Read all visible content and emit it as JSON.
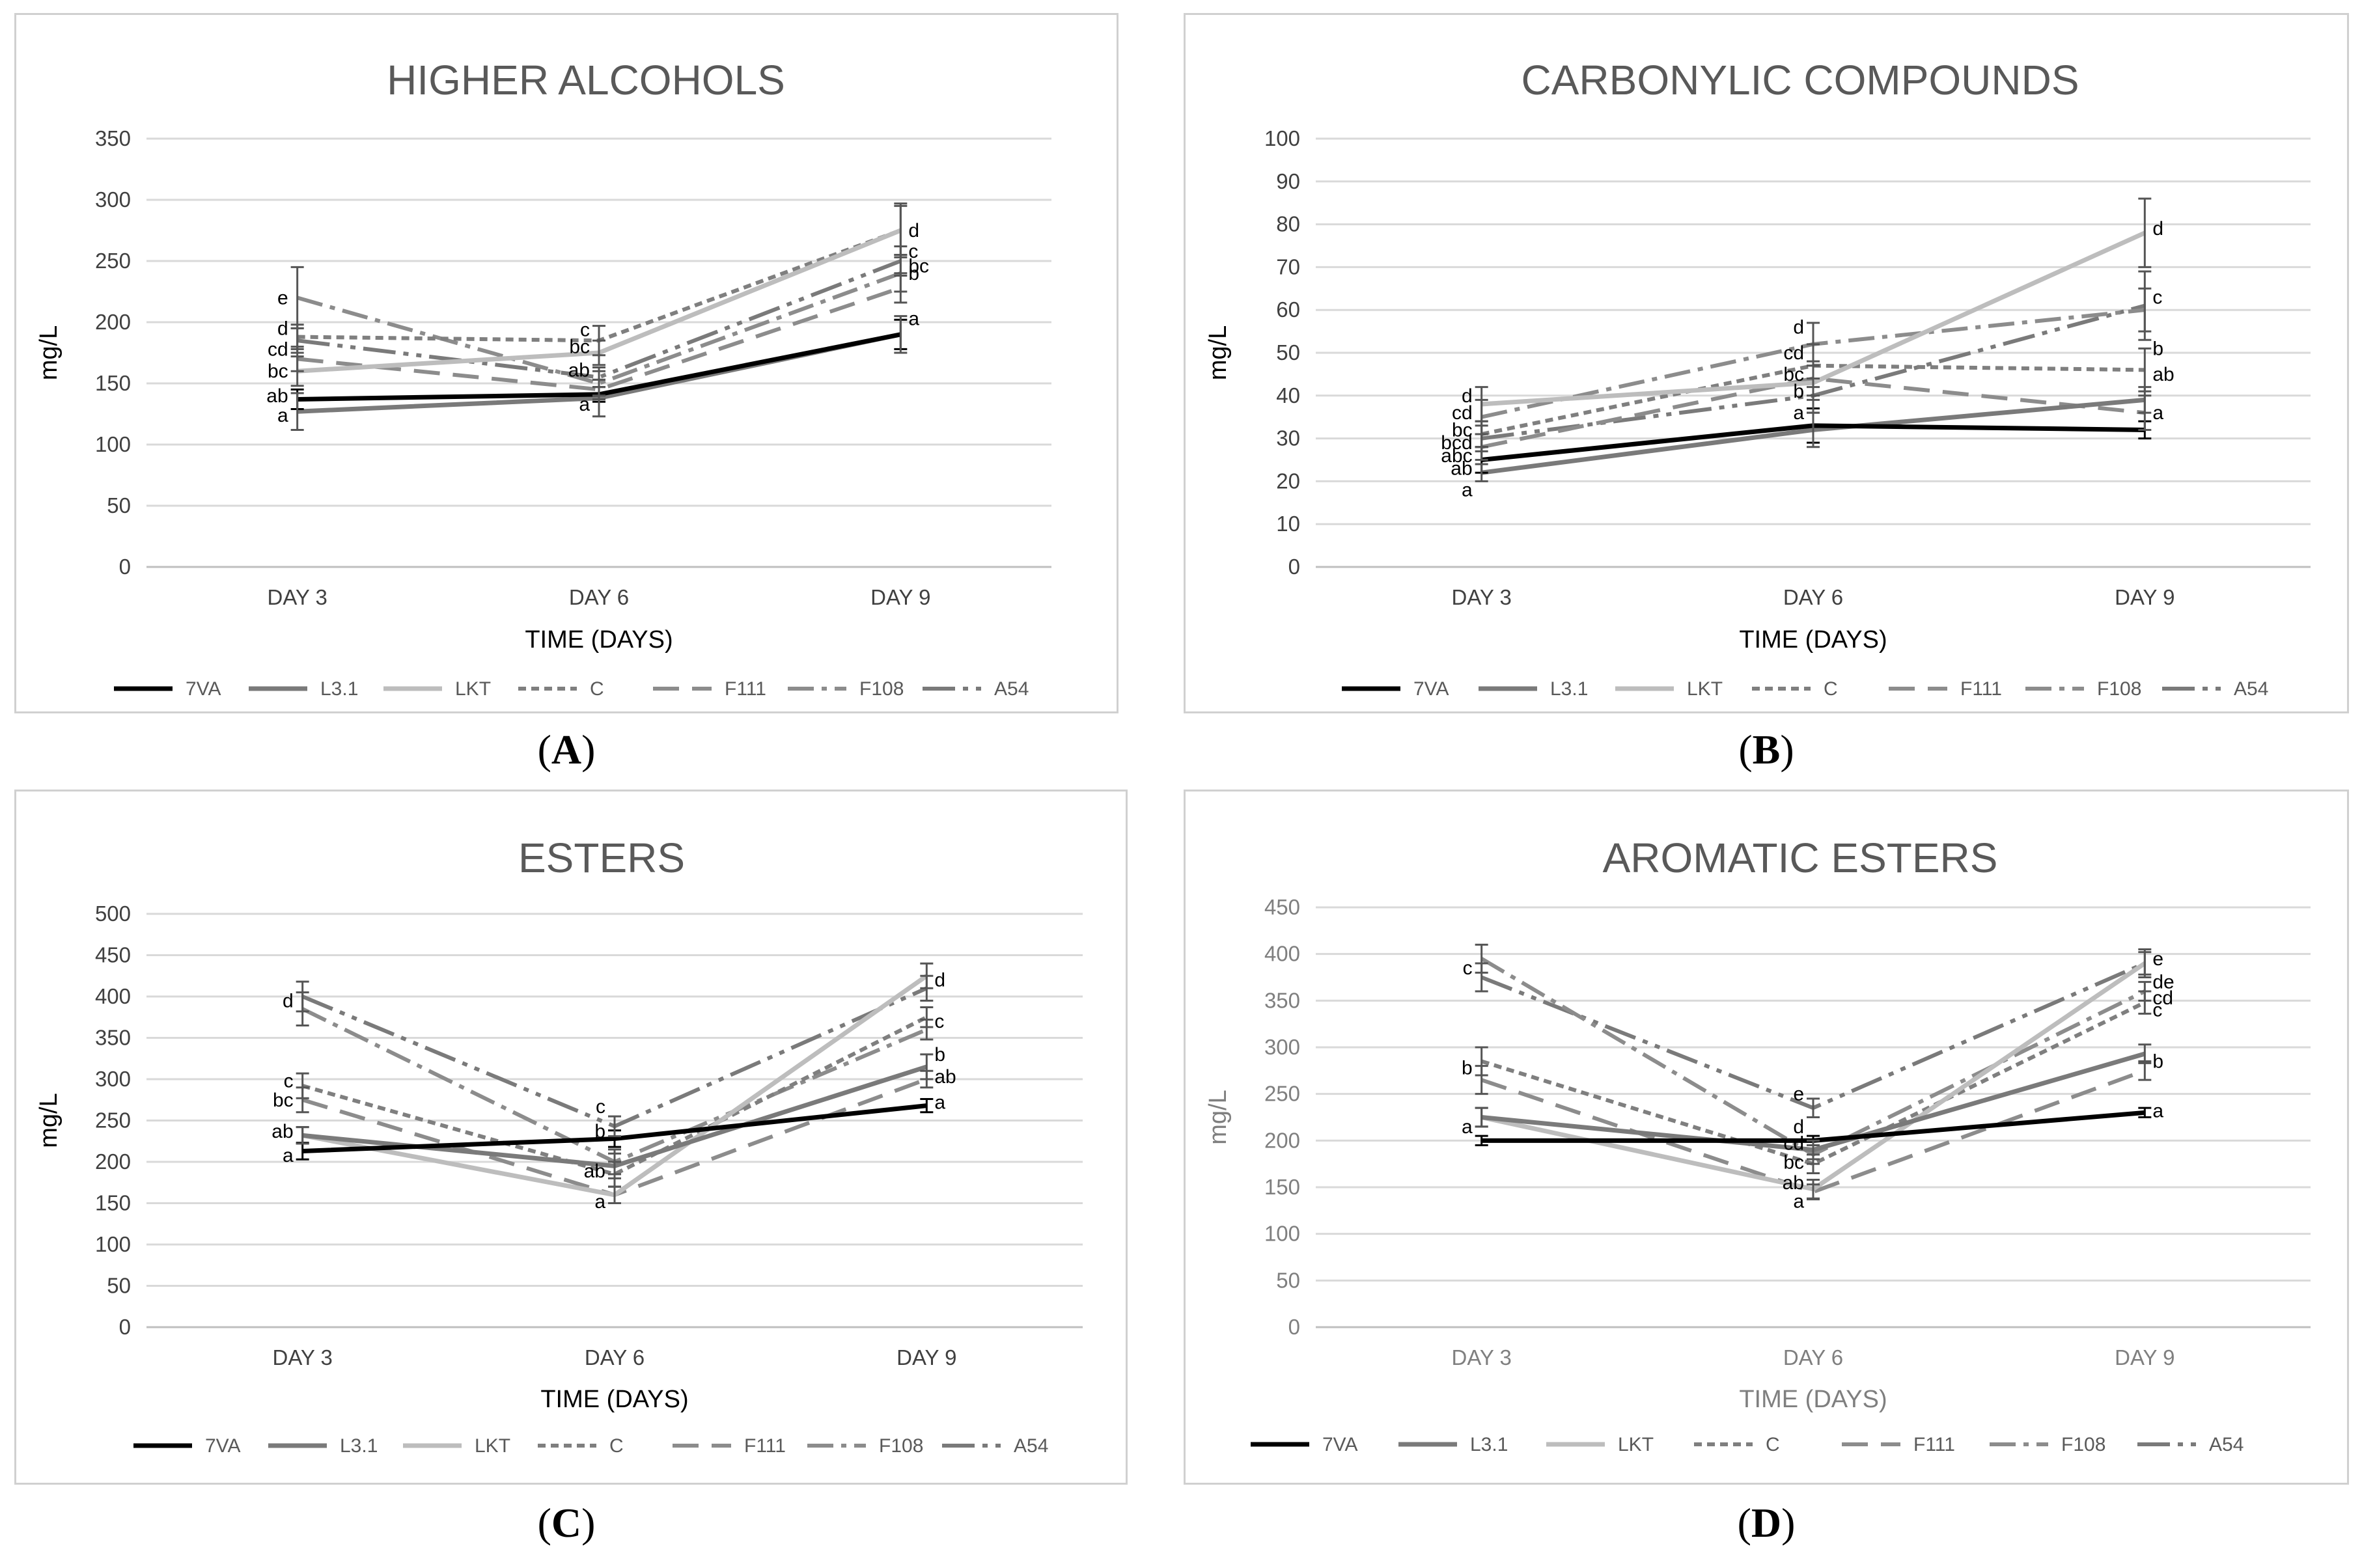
{
  "series_styles": [
    {
      "name": "7VA",
      "color": "#000000",
      "dash": "",
      "width": 7
    },
    {
      "name": "L3.1",
      "color": "#7a7a7a",
      "dash": "",
      "width": 7
    },
    {
      "name": "LKT",
      "color": "#bdbdbd",
      "dash": "",
      "width": 7
    },
    {
      "name": "C",
      "color": "#7f7f7f",
      "dash": "12,8",
      "width": 6
    },
    {
      "name": "F111",
      "color": "#8c8c8c",
      "dash": "40,20",
      "width": 6
    },
    {
      "name": "F108",
      "color": "#8c8c8c",
      "dash": "40,12,8,12",
      "width": 6
    },
    {
      "name": "A54",
      "color": "#7a7a7a",
      "dash": "50,12,8,12,8,12",
      "width": 6
    }
  ],
  "chart_data": [
    {
      "panel": "A",
      "type": "line",
      "title": "HIGHER ALCOHOLS",
      "xlabel": "TIME (DAYS)",
      "ylabel": "mg/L",
      "categories": [
        "DAY 3",
        "DAY 6",
        "DAY 9"
      ],
      "ylim": [
        0,
        350
      ],
      "yticks": [
        0,
        50,
        100,
        150,
        200,
        250,
        300,
        350
      ],
      "series": [
        {
          "name": "7VA",
          "values": [
            137,
            141,
            190
          ],
          "errors": [
            8,
            6,
            12
          ]
        },
        {
          "name": "L3.1",
          "values": [
            127,
            138,
            190
          ],
          "errors": [
            15,
            15,
            15
          ]
        },
        {
          "name": "LKT",
          "values": [
            160,
            175,
            275
          ],
          "errors": [
            12,
            10,
            20
          ]
        },
        {
          "name": "C",
          "values": [
            188,
            185,
            275
          ],
          "errors": [
            10,
            12,
            22
          ]
        },
        {
          "name": "F111",
          "values": [
            170,
            145,
            228
          ],
          "errors": [
            10,
            8,
            12
          ]
        },
        {
          "name": "F108",
          "values": [
            220,
            150,
            240
          ],
          "errors": [
            25,
            10,
            15
          ]
        },
        {
          "name": "A54",
          "values": [
            185,
            155,
            250
          ],
          "errors": [
            10,
            8,
            12
          ]
        }
      ],
      "letters": [
        {
          "category": "DAY 3",
          "labels": [
            {
              "text": "e",
              "value": 220
            },
            {
              "text": "d",
              "value": 195
            },
            {
              "text": "cd",
              "value": 178
            },
            {
              "text": "bc",
              "value": 160
            },
            {
              "text": "ab",
              "value": 140
            },
            {
              "text": "a",
              "value": 124
            }
          ]
        },
        {
          "category": "DAY 6",
          "labels": [
            {
              "text": "c",
              "value": 194
            },
            {
              "text": "bc",
              "value": 180
            },
            {
              "text": "ab",
              "value": 161
            },
            {
              "text": "a",
              "value": 133
            }
          ]
        },
        {
          "category": "DAY 9",
          "labels": [
            {
              "text": "d",
              "value": 275
            },
            {
              "text": "c",
              "value": 258
            },
            {
              "text": "bc",
              "value": 246
            },
            {
              "text": "b",
              "value": 240
            },
            {
              "text": "a",
              "value": 203
            }
          ]
        }
      ],
      "panel_label": "A"
    },
    {
      "panel": "B",
      "type": "line",
      "title": "CARBONYLIC COMPOUNDS",
      "xlabel": "TIME (DAYS)",
      "ylabel": "mg/L",
      "categories": [
        "DAY 3",
        "DAY 6",
        "DAY 9"
      ],
      "ylim": [
        0,
        100
      ],
      "yticks": [
        0,
        10,
        20,
        30,
        40,
        50,
        60,
        70,
        80,
        90,
        100
      ],
      "series": [
        {
          "name": "7VA",
          "values": [
            25,
            33,
            32
          ],
          "errors": [
            3,
            4,
            2
          ]
        },
        {
          "name": "L3.1",
          "values": [
            22,
            32,
            39
          ],
          "errors": [
            2,
            4,
            3
          ]
        },
        {
          "name": "LKT",
          "values": [
            38,
            43,
            78
          ],
          "errors": [
            4,
            4,
            8
          ]
        },
        {
          "name": "C",
          "values": [
            31,
            47,
            46
          ],
          "errors": [
            3,
            5,
            5
          ]
        },
        {
          "name": "F111",
          "values": [
            28,
            44,
            36
          ],
          "errors": [
            3,
            4,
            4
          ]
        },
        {
          "name": "F108",
          "values": [
            35,
            52,
            60
          ],
          "errors": [
            4,
            5,
            5
          ]
        },
        {
          "name": "A54",
          "values": [
            30,
            40,
            61
          ],
          "errors": [
            3,
            4,
            8
          ]
        }
      ],
      "letters": [
        {
          "category": "DAY 3",
          "labels": [
            {
              "text": "d",
              "value": 40
            },
            {
              "text": "cd",
              "value": 36
            },
            {
              "text": "bc",
              "value": 32
            },
            {
              "text": "bcd",
              "value": 29
            },
            {
              "text": "abc",
              "value": 26
            },
            {
              "text": "ab",
              "value": 23
            },
            {
              "text": "a",
              "value": 18
            }
          ]
        },
        {
          "category": "DAY 6",
          "labels": [
            {
              "text": "d",
              "value": 56
            },
            {
              "text": "cd",
              "value": 50
            },
            {
              "text": "bc",
              "value": 45
            },
            {
              "text": "b",
              "value": 41
            },
            {
              "text": "a",
              "value": 36
            }
          ]
        },
        {
          "category": "DAY 9",
          "labels": [
            {
              "text": "d",
              "value": 79
            },
            {
              "text": "c",
              "value": 63
            },
            {
              "text": "b",
              "value": 51
            },
            {
              "text": "ab",
              "value": 45
            },
            {
              "text": "a",
              "value": 36
            }
          ]
        }
      ],
      "panel_label": "B"
    },
    {
      "panel": "C",
      "type": "line",
      "title": "ESTERS",
      "xlabel": "TIME (DAYS)",
      "ylabel": "mg/L",
      "categories": [
        "DAY 3",
        "DAY 6",
        "DAY 9"
      ],
      "ylim": [
        0,
        500
      ],
      "yticks": [
        0,
        50,
        100,
        150,
        200,
        250,
        300,
        350,
        400,
        450,
        500
      ],
      "series": [
        {
          "name": "7VA",
          "values": [
            213,
            228,
            268
          ],
          "errors": [
            10,
            10,
            8
          ]
        },
        {
          "name": "L3.1",
          "values": [
            232,
            195,
            315
          ],
          "errors": [
            10,
            15,
            15
          ]
        },
        {
          "name": "LKT",
          "values": [
            232,
            160,
            425
          ],
          "errors": [
            10,
            10,
            15
          ]
        },
        {
          "name": "C",
          "values": [
            292,
            185,
            375
          ],
          "errors": [
            15,
            15,
            12
          ]
        },
        {
          "name": "F111",
          "values": [
            275,
            160,
            300
          ],
          "errors": [
            15,
            10,
            10
          ]
        },
        {
          "name": "F108",
          "values": [
            385,
            200,
            360
          ],
          "errors": [
            20,
            15,
            12
          ]
        },
        {
          "name": "A54",
          "values": [
            400,
            243,
            410
          ],
          "errors": [
            18,
            12,
            15
          ]
        }
      ],
      "letters": [
        {
          "category": "DAY 3",
          "labels": [
            {
              "text": "d",
              "value": 395
            },
            {
              "text": "c",
              "value": 298
            },
            {
              "text": "bc",
              "value": 275
            },
            {
              "text": "ab",
              "value": 237
            },
            {
              "text": "a",
              "value": 208
            }
          ]
        },
        {
          "category": "DAY 6",
          "labels": [
            {
              "text": "c",
              "value": 267
            },
            {
              "text": "b",
              "value": 237
            },
            {
              "text": "ab",
              "value": 189
            },
            {
              "text": "a",
              "value": 152
            }
          ]
        },
        {
          "category": "DAY 9",
          "labels": [
            {
              "text": "d",
              "value": 420
            },
            {
              "text": "c",
              "value": 370
            },
            {
              "text": "b",
              "value": 330
            },
            {
              "text": "ab",
              "value": 303
            },
            {
              "text": "a",
              "value": 272
            }
          ]
        }
      ],
      "panel_label": "C"
    },
    {
      "panel": "D",
      "type": "line",
      "title": "AROMATIC ESTERS",
      "xlabel": "TIME (DAYS)",
      "ylabel": "mg/L",
      "categories": [
        "DAY 3",
        "DAY 6",
        "DAY 9"
      ],
      "ylim": [
        0,
        450
      ],
      "yticks": [
        0,
        50,
        100,
        150,
        200,
        250,
        300,
        350,
        400,
        450
      ],
      "series": [
        {
          "name": "7VA",
          "values": [
            200,
            200,
            230
          ],
          "errors": [
            5,
            5,
            5
          ]
        },
        {
          "name": "L3.1",
          "values": [
            225,
            190,
            293
          ],
          "errors": [
            10,
            10,
            10
          ]
        },
        {
          "name": "LKT",
          "values": [
            225,
            148,
            390
          ],
          "errors": [
            10,
            10,
            12
          ]
        },
        {
          "name": "C",
          "values": [
            285,
            175,
            348
          ],
          "errors": [
            15,
            10,
            12
          ]
        },
        {
          "name": "F111",
          "values": [
            265,
            145,
            275
          ],
          "errors": [
            15,
            8,
            10
          ]
        },
        {
          "name": "F108",
          "values": [
            395,
            185,
            360
          ],
          "errors": [
            15,
            10,
            10
          ]
        },
        {
          "name": "A54",
          "values": [
            375,
            235,
            390
          ],
          "errors": [
            15,
            10,
            15
          ]
        }
      ],
      "letters": [
        {
          "category": "DAY 3",
          "labels": [
            {
              "text": "c",
              "value": 385
            },
            {
              "text": "b",
              "value": 278
            },
            {
              "text": "a",
              "value": 215
            }
          ]
        },
        {
          "category": "DAY 6",
          "labels": [
            {
              "text": "e",
              "value": 250
            },
            {
              "text": "d",
              "value": 215
            },
            {
              "text": "cd",
              "value": 197
            },
            {
              "text": "bc",
              "value": 177
            },
            {
              "text": "ab",
              "value": 155
            },
            {
              "text": "a",
              "value": 135
            }
          ]
        },
        {
          "category": "DAY 9",
          "labels": [
            {
              "text": "e",
              "value": 395
            },
            {
              "text": "de",
              "value": 370
            },
            {
              "text": "cd",
              "value": 353
            },
            {
              "text": "c",
              "value": 340
            },
            {
              "text": "b",
              "value": 285
            },
            {
              "text": "a",
              "value": 232
            }
          ]
        }
      ],
      "panel_label": "D"
    }
  ]
}
